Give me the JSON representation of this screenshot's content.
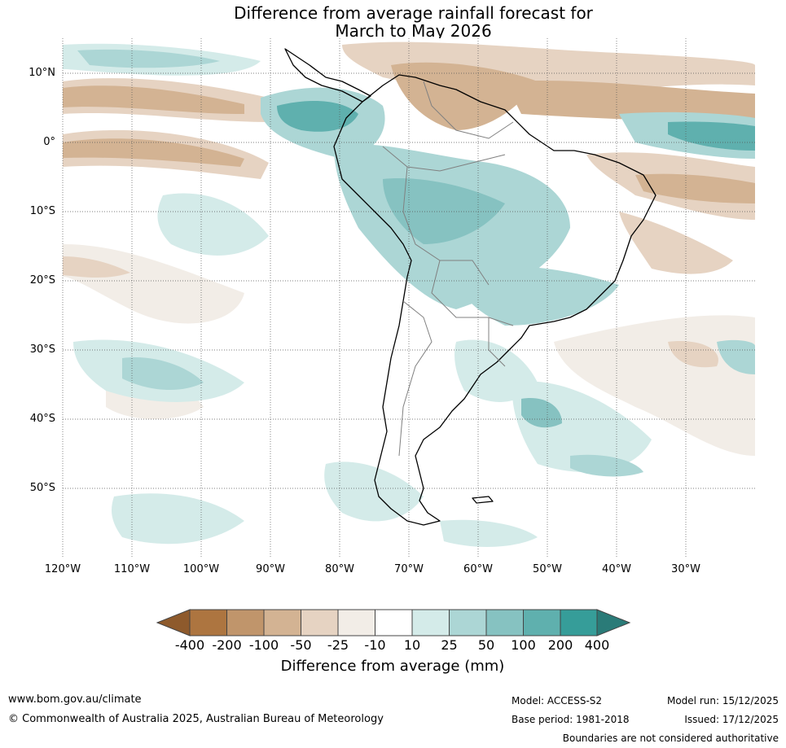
{
  "title": {
    "line1": "Difference from average rainfall forecast for",
    "line2": "March to May 2026"
  },
  "map": {
    "latitude_labels": [
      "10°N",
      "0°",
      "10°S",
      "20°S",
      "30°S",
      "40°S",
      "50°S"
    ],
    "longitude_labels": [
      "120°W",
      "110°W",
      "100°W",
      "90°W",
      "80°W",
      "70°W",
      "60°W",
      "50°W",
      "40°W",
      "30°W"
    ]
  },
  "colorbar": {
    "ticks": [
      "-400",
      "-200",
      "-100",
      "-50",
      "-25",
      "-10",
      "10",
      "25",
      "50",
      "100",
      "200",
      "400"
    ],
    "colors": [
      "#8e5a2c",
      "#ad7540",
      "#c0956b",
      "#d3b393",
      "#e6d3c2",
      "#f2ede7",
      "#ffffff",
      "#d4ebe9",
      "#acd6d5",
      "#86c2c1",
      "#5fb0ae",
      "#369d99",
      "#2a7b78"
    ],
    "label": "Difference from average (mm)"
  },
  "footer": {
    "url": "www.bom.gov.au/climate",
    "copyright": "© Commonwealth of Australia 2025, Australian Bureau of Meteorology",
    "model": "Model: ACCESS-S2",
    "base_period": "Base period: 1981-2018",
    "model_run": "Model run: 15/12/2025",
    "issued": "Issued: 17/12/2025",
    "disclaimer": "Boundaries are not considered authoritative"
  }
}
